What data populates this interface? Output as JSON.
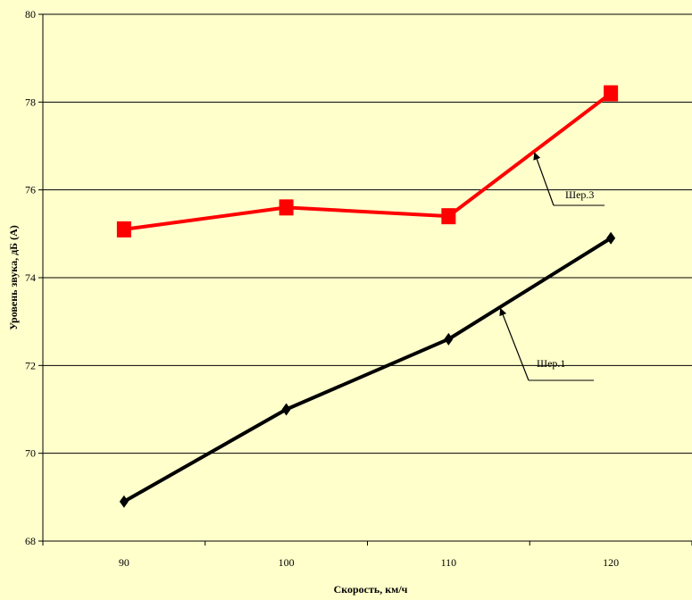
{
  "chart_data": {
    "type": "line",
    "title": "",
    "xlabel": "Скорость, км/ч",
    "ylabel": "Уровень звука, дБ (А)",
    "ylim": [
      68,
      80
    ],
    "yticks": [
      "68",
      "70",
      "72",
      "74",
      "76",
      "78",
      "80"
    ],
    "categories": [
      "90",
      "100",
      "110",
      "120"
    ],
    "grid": "horizontal",
    "background": "#ffffcc",
    "series": [
      {
        "name": "Шер.3",
        "values": [
          75.1,
          75.6,
          75.4,
          78.2
        ],
        "color": "#ff0000",
        "marker": "square"
      },
      {
        "name": "Шер.1",
        "values": [
          68.9,
          71.0,
          72.6,
          74.9
        ],
        "color": "#000000",
        "marker": "diamond"
      }
    ],
    "annotations": [
      {
        "text": "Шер.3",
        "series": "Шер.3"
      },
      {
        "text": "Шер.1",
        "series": "Шер.1"
      }
    ]
  }
}
